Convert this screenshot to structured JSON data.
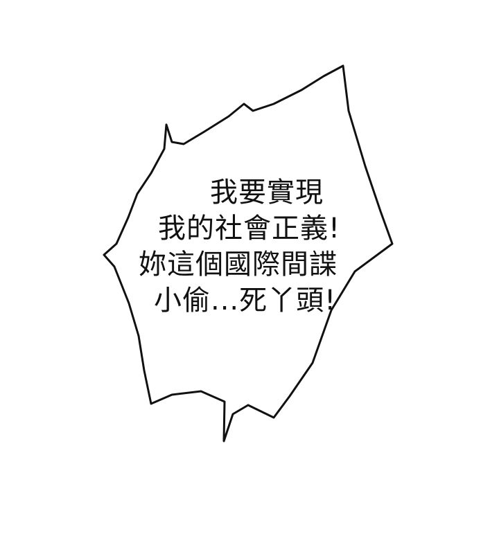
{
  "speech_bubble": {
    "lines": [
      "我要實現",
      "我的社會正義!",
      "妳這個國際間諜",
      "小偷...死丫頭!"
    ],
    "fill_color": "#ffffff",
    "stroke_color": "#111111"
  }
}
